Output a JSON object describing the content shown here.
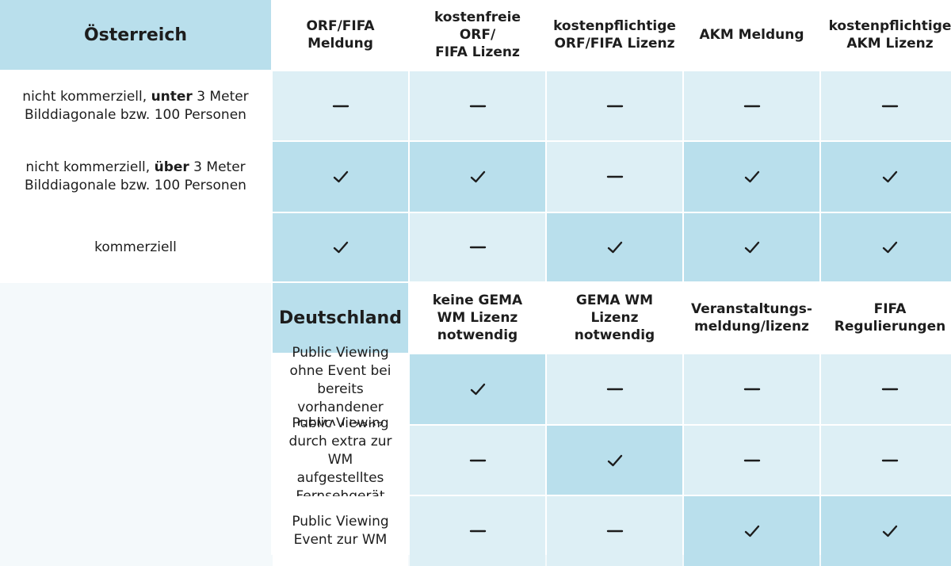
{
  "at": {
    "country": "Österreich",
    "headers": [
      "ORF/FIFA\nMeldung",
      "kostenfreie ORF/\nFIFA Lizenz",
      "kostenpflichtige\nORF/FIFA Lizenz",
      "AKM Meldung",
      "kostenpflichtige\nAKM Lizenz"
    ],
    "rows": [
      {
        "pre": "nicht kommerziell, ",
        "bold": "unter",
        "post": " 3 Meter\nBilddiagonale bzw. 100 Personen",
        "cells": [
          "dash",
          "dash",
          "dash",
          "dash",
          "dash"
        ]
      },
      {
        "pre": "nicht kommerziell, ",
        "bold": "über",
        "post": " 3 Meter\nBilddiagonale bzw. 100 Personen",
        "cells": [
          "check",
          "check",
          "dash",
          "check",
          "check"
        ]
      },
      {
        "pre": "kommerziell",
        "bold": "",
        "post": "",
        "cells": [
          "check",
          "dash",
          "check",
          "check",
          "check"
        ]
      }
    ]
  },
  "de": {
    "country": "Deutschland",
    "headers": [
      "keine GEMA\nWM Lizenz\nnotwendig",
      "GEMA WM\nLizenz\nnotwendig",
      "Veranstaltungs-\nmeldung/lizenz",
      "FIFA\nRegulierungen"
    ],
    "rows": [
      {
        "pre": "Public Viewing ohne Event bei\nbereits vorhandener GEMA Lizenz",
        "bold": "",
        "post": "",
        "cells": [
          "check",
          "dash",
          "dash",
          "dash"
        ]
      },
      {
        "pre": "Public Viewing durch extra zur WM\naufgestelltes Fernsehgerät",
        "bold": "",
        "post": "",
        "cells": [
          "dash",
          "check",
          "dash",
          "dash"
        ]
      },
      {
        "pre": "Public Viewing Event zur WM",
        "bold": "",
        "post": "",
        "cells": [
          "dash",
          "dash",
          "check",
          "check"
        ]
      }
    ]
  },
  "colors": {
    "light": "#ddeff5",
    "dark": "#b9dfec",
    "text": "#1d1d1d"
  }
}
